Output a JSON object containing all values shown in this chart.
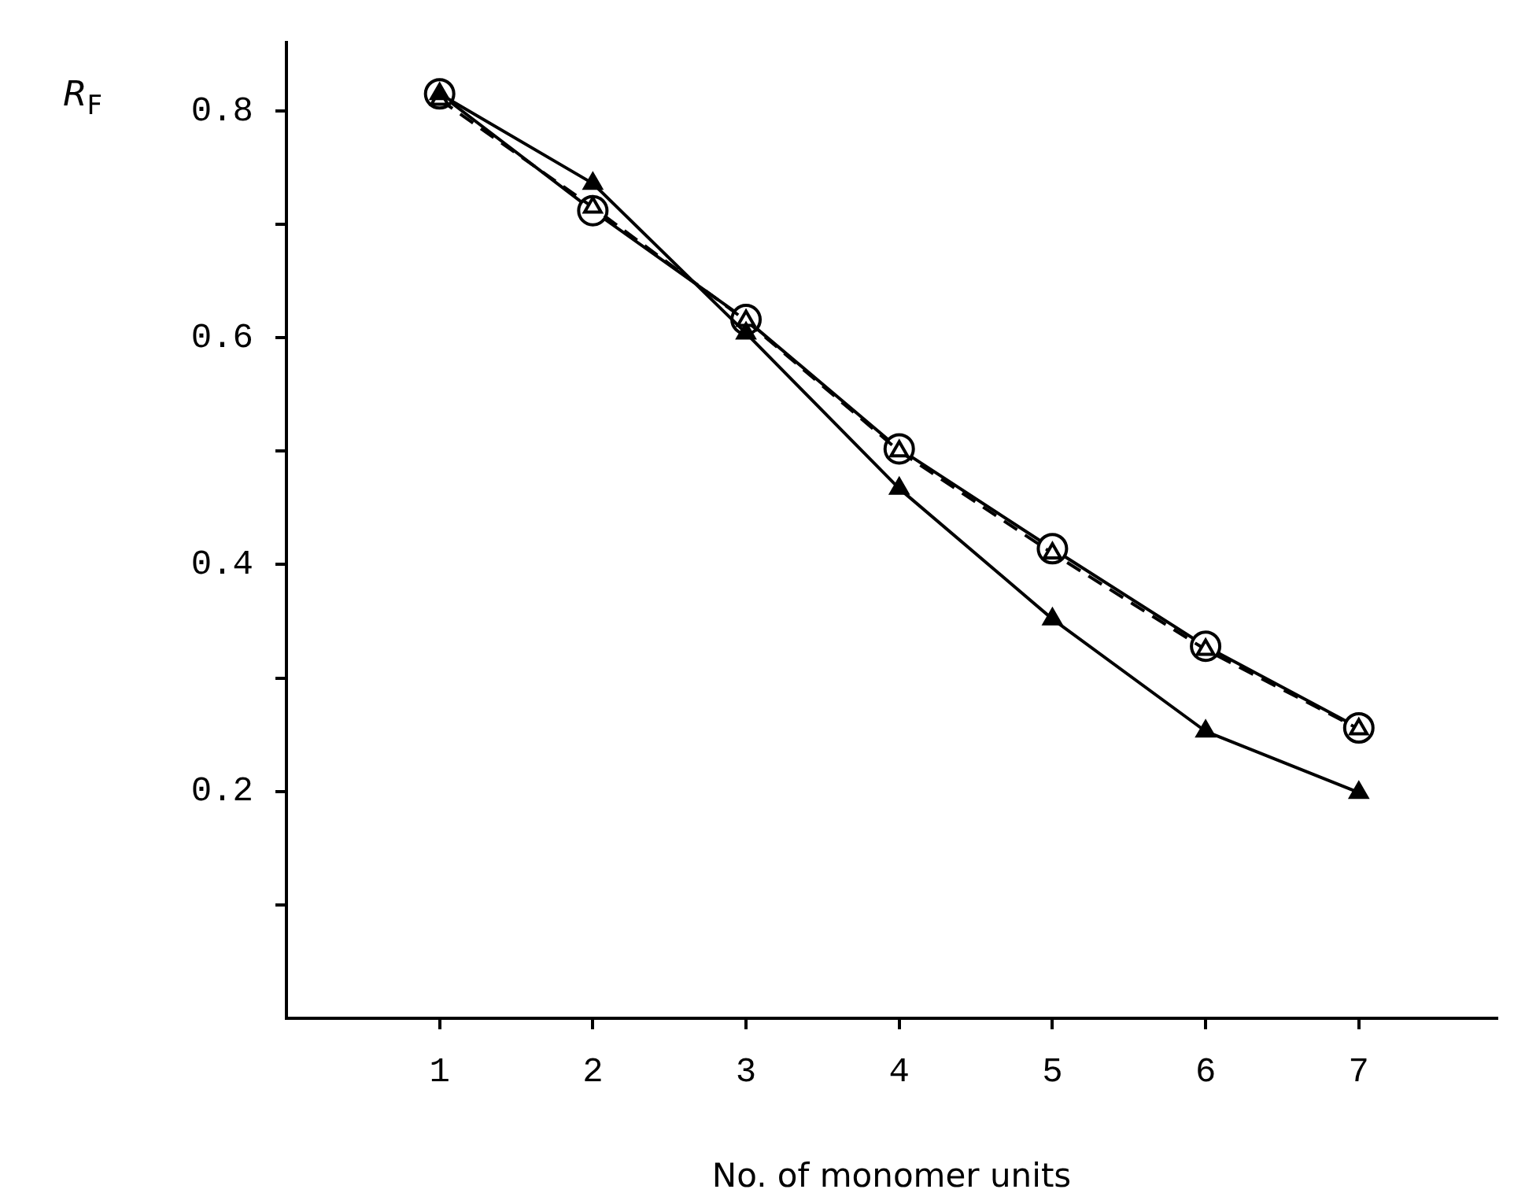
{
  "chart_data": {
    "type": "line",
    "xlabel": "No. of monomer units",
    "ylabel": "R$_{F}$",
    "x": [
      1,
      2,
      3,
      4,
      5,
      6,
      7
    ],
    "series": [
      {
        "color": "#000000",
        "marker": "circle",
        "line_style": "solid",
        "values": [
          0.815,
          0.712,
          0.616,
          0.502,
          0.414,
          0.328,
          0.256
        ]
      },
      {
        "color": "#000000",
        "marker": "triangle",
        "line_style": "dashed",
        "values": [
          0.81,
          0.715,
          0.615,
          0.5,
          0.41,
          0.325,
          0.255
        ]
      },
      {
        "color": "#000000",
        "marker": "triangle",
        "line_style": "solid",
        "values": [
          0.815,
          0.736,
          0.604,
          0.467,
          0.352,
          0.253,
          0.199
        ]
      }
    ],
    "xlim": [
      0,
      7.9
    ],
    "ylim": [
      0,
      0.86
    ],
    "xticks": [
      1,
      2,
      3,
      4,
      5,
      6,
      7
    ],
    "yticks": [
      {
        "value": 0.1,
        "label": null
      },
      0.2,
      {
        "value": 0.3,
        "label": null
      },
      0.4,
      {
        "value": 0.5,
        "label": null
      },
      0.6,
      {
        "value": 0.7,
        "label": null
      },
      0.8
    ],
    "grid": false,
    "legend": false
  }
}
